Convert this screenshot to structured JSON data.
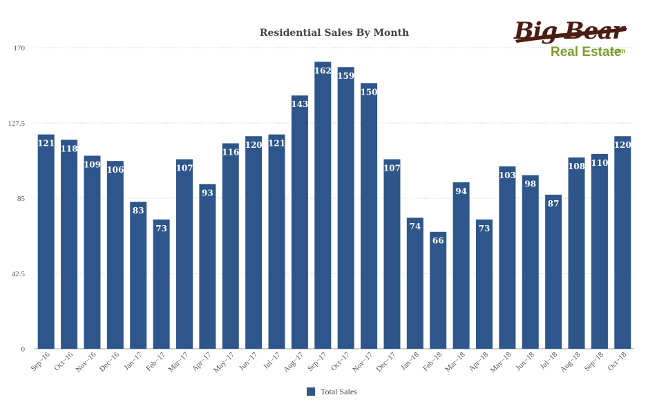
{
  "logo": {
    "line1": "Big Bear",
    "line2": "Real Estate",
    "suffix": ".com"
  },
  "colors": {
    "bar": "#2e568b",
    "grid": "#c8c8c8",
    "label": "#ffffff"
  },
  "chart_data": {
    "type": "bar",
    "title": "Residential Sales By Month",
    "xlabel": "",
    "ylabel": "",
    "ylim": [
      0,
      170
    ],
    "yticks": [
      "0",
      "42.5",
      "85",
      "127.5",
      "170"
    ],
    "grid": true,
    "legend_position": "bottom-center",
    "categories": [
      "Sep−16",
      "Oct−16",
      "Nov−16",
      "Dec−16",
      "Jan−17",
      "Feb−17",
      "Mar−17",
      "Apr−17",
      "May−17",
      "Jun−17",
      "Jul−17",
      "Aug−17",
      "Sep−17",
      "Oct−17",
      "Nov−17",
      "Dec−17",
      "Jan−18",
      "Feb−18",
      "Mar−18",
      "Apr−18",
      "May−18",
      "Jun−18",
      "Jul−18",
      "Aug−18",
      "Sep−18",
      "Oct−18"
    ],
    "series": [
      {
        "name": "Total Sales",
        "values": [
          121,
          118,
          109,
          106,
          83,
          73,
          107,
          93,
          116,
          120,
          121,
          143,
          162,
          159,
          150,
          107,
          74,
          66,
          94,
          73,
          103,
          98,
          87,
          108,
          110,
          120
        ]
      }
    ]
  }
}
